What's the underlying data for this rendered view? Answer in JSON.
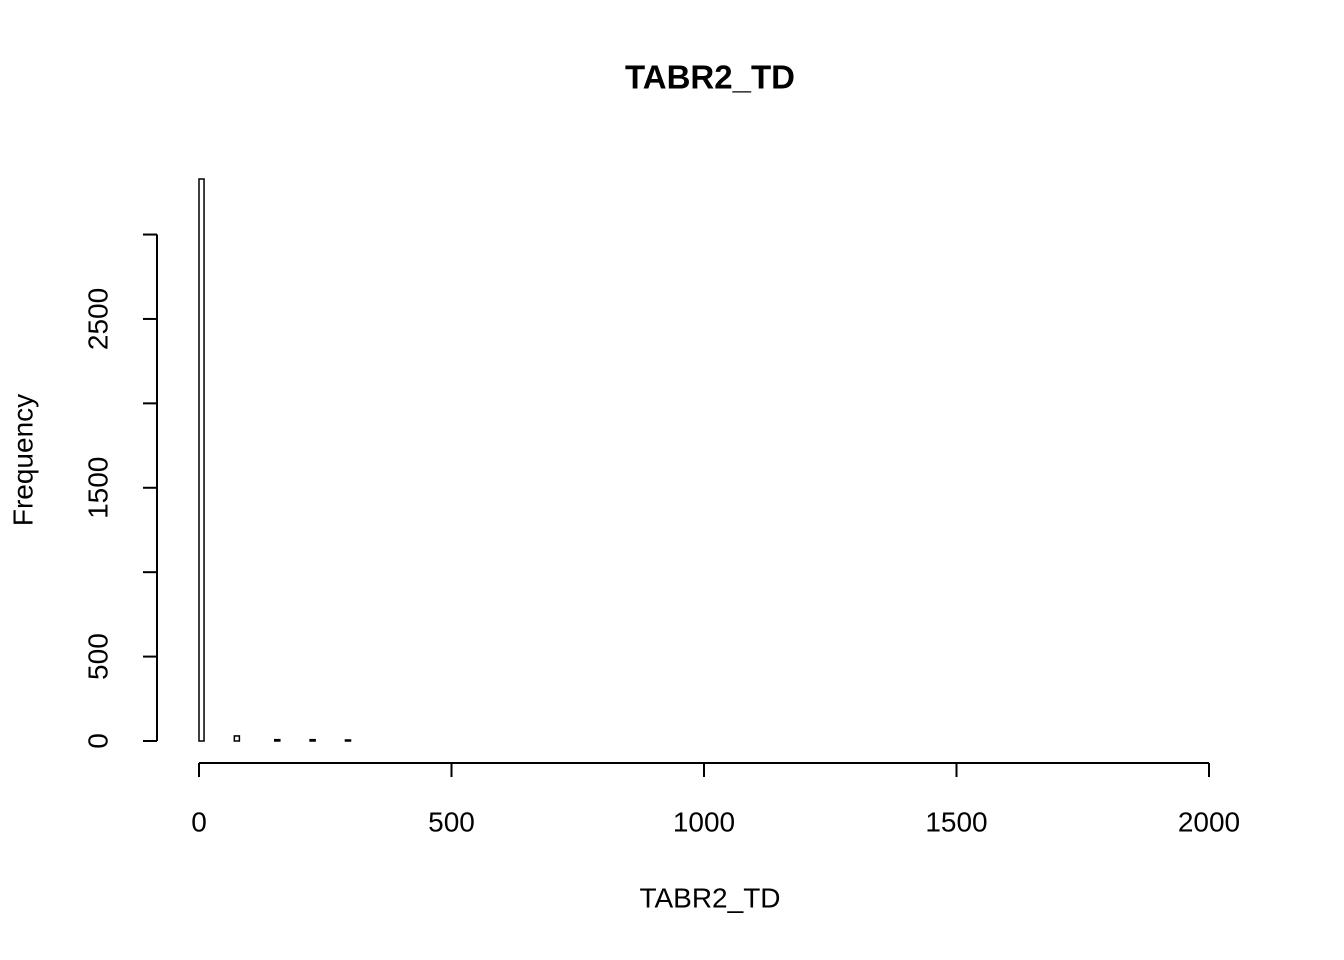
{
  "chart_data": {
    "type": "histogram",
    "title": "TABR2_TD",
    "x_label": "TABR2_TD",
    "y_label": "Frequency",
    "bins": [
      0,
      10,
      20,
      30,
      40,
      50,
      60,
      70,
      80,
      90,
      100,
      110,
      120,
      130,
      140,
      150,
      160,
      170,
      180,
      190,
      200,
      210,
      220,
      230,
      240,
      250,
      260,
      270,
      280,
      290,
      300,
      310,
      320,
      330,
      340,
      350,
      360,
      370,
      380,
      390,
      400,
      410,
      420,
      430,
      440,
      450,
      460,
      470,
      480,
      490,
      500,
      510,
      520,
      530,
      540,
      550,
      560,
      570,
      580,
      590,
      600,
      610,
      620,
      630,
      640,
      650,
      660,
      670,
      680,
      690,
      700,
      710,
      720,
      730,
      740,
      750,
      760,
      770,
      780,
      790,
      800,
      810,
      820,
      830,
      840,
      850,
      860,
      870,
      880,
      890,
      900,
      910,
      920,
      930,
      940,
      950,
      960,
      970,
      980,
      990,
      1000,
      1010,
      1020,
      1030,
      1040,
      1050,
      1060,
      1070,
      1080,
      1090,
      1100,
      1110,
      1120,
      1130,
      1140,
      1150,
      1160,
      1170,
      1180,
      1190,
      1200,
      1210,
      1220,
      1230,
      1240,
      1250,
      1260,
      1270,
      1280,
      1290,
      1300,
      1310,
      1320,
      1330,
      1340,
      1350,
      1360,
      1370,
      1380,
      1390,
      1400,
      1410,
      1420,
      1430,
      1440,
      1450,
      1460,
      1470,
      1480,
      1490,
      1500,
      1510,
      1520,
      1530,
      1540,
      1550,
      1560,
      1570,
      1580,
      1590,
      1600,
      1610,
      1620,
      1630,
      1640,
      1650,
      1660,
      1670,
      1680,
      1690,
      1700,
      1710,
      1720,
      1730,
      1740,
      1750,
      1760,
      1770,
      1780,
      1790,
      1800,
      1810,
      1820,
      1830,
      1840,
      1850,
      1860,
      1870,
      1880,
      1890,
      1900,
      1910,
      1920,
      1930,
      1940,
      1950,
      1960,
      1970,
      1980,
      1990,
      2000,
      2010,
      2020,
      2030
    ],
    "values": [
      3329,
      0,
      0,
      0,
      0,
      0,
      0,
      30,
      0,
      0,
      0,
      0,
      0,
      0,
      0,
      8,
      0,
      0,
      0,
      0,
      0,
      0,
      8,
      0,
      0,
      0,
      0,
      0,
      0,
      6,
      0,
      0,
      0,
      0,
      0,
      0,
      0,
      0,
      0,
      0,
      0,
      0,
      0,
      0,
      0,
      0,
      0,
      0,
      0,
      0,
      0,
      0,
      0,
      0,
      0,
      0,
      0,
      0,
      0,
      0,
      0,
      0,
      0,
      0,
      0,
      0,
      0,
      0,
      0,
      0,
      0,
      0,
      0,
      0,
      0,
      0,
      0,
      0,
      0,
      0,
      0,
      0,
      0,
      0,
      0,
      0,
      0,
      0,
      0,
      0,
      0,
      0,
      0,
      0,
      0,
      0,
      0,
      0,
      0,
      0,
      0,
      0,
      0,
      0,
      0,
      0,
      0,
      0,
      0,
      0,
      0,
      0,
      0,
      0,
      0,
      0,
      0,
      0,
      0,
      0,
      0,
      0,
      0,
      0,
      0,
      0,
      0,
      0,
      0,
      0,
      0,
      0,
      0,
      0,
      0,
      0,
      0,
      0,
      0,
      0,
      0,
      0,
      0,
      0,
      0,
      0,
      0,
      0,
      0,
      0,
      0,
      0,
      0,
      0,
      0,
      0,
      0,
      0,
      0,
      0,
      0,
      0,
      0,
      0,
      0,
      0,
      0,
      0,
      0,
      0,
      0,
      0,
      0,
      0,
      0,
      0,
      0,
      0,
      0,
      0,
      0,
      0,
      0,
      0,
      0,
      0,
      0,
      0,
      0,
      0,
      0,
      0,
      0,
      0,
      0,
      0,
      0,
      0,
      0,
      0,
      0,
      0,
      0
    ],
    "color": "#000000",
    "xlim": [
      0,
      2000
    ],
    "xticks": [
      0,
      500,
      1000,
      1500,
      2000
    ],
    "ylim": [
      0,
      3329
    ],
    "yticks": [
      0,
      500,
      {
        "value": 1000,
        "label": null
      },
      1500,
      {
        "value": 2000,
        "label": null
      },
      2500,
      {
        "value": 3000,
        "label": null
      }
    ]
  }
}
